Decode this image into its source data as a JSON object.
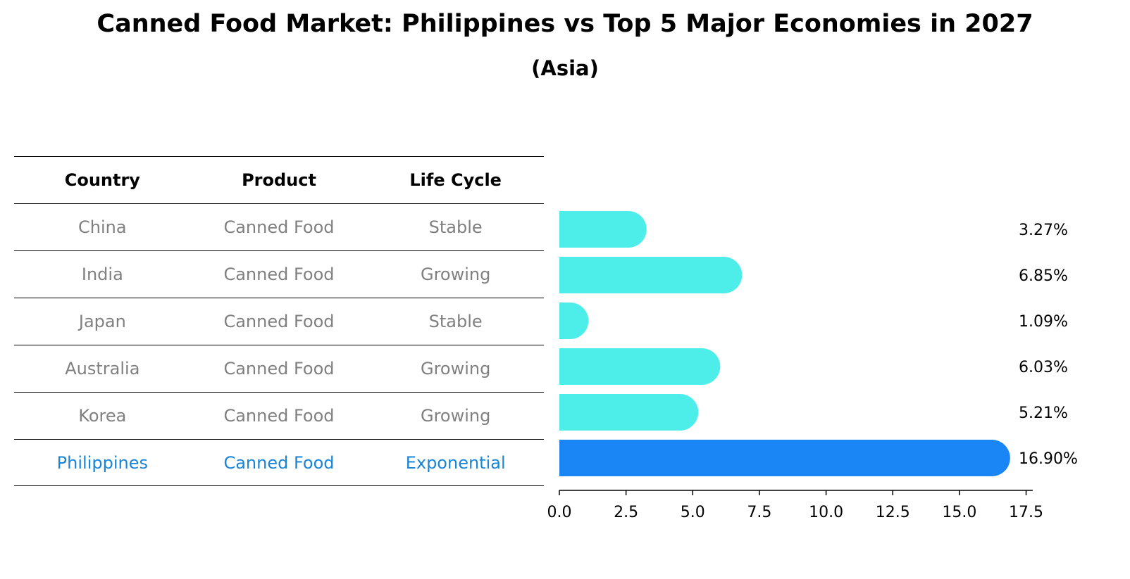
{
  "title": "Canned Food Market: Philippines vs Top 5 Major Economies in 2027",
  "subtitle": "(Asia)",
  "table": {
    "headers": [
      "Country",
      "Product",
      "Life Cycle"
    ],
    "rows": [
      {
        "country": "China",
        "product": "Canned Food",
        "life_cycle": "Stable"
      },
      {
        "country": "India",
        "product": "Canned Food",
        "life_cycle": "Growing"
      },
      {
        "country": "Japan",
        "product": "Canned Food",
        "life_cycle": "Stable"
      },
      {
        "country": "Australia",
        "product": "Canned Food",
        "life_cycle": "Growing"
      },
      {
        "country": "Korea",
        "product": "Canned Food",
        "life_cycle": "Growing"
      },
      {
        "country": "Philippines",
        "product": "Canned Food",
        "life_cycle": "Exponential"
      }
    ]
  },
  "chart_data": {
    "type": "bar",
    "orientation": "horizontal",
    "categories": [
      "China",
      "India",
      "Japan",
      "Australia",
      "Korea",
      "Philippines"
    ],
    "values": [
      3.27,
      6.85,
      1.09,
      6.03,
      5.21,
      16.9
    ],
    "value_labels": [
      "3.27%",
      "6.85%",
      "1.09%",
      "6.03%",
      "5.21%",
      "16.90%"
    ],
    "highlight": "Philippines",
    "xlim": [
      0,
      17.75
    ],
    "xticks": [
      0.0,
      2.5,
      5.0,
      7.5,
      10.0,
      12.5,
      15.0,
      17.5
    ],
    "xtick_labels": [
      "0.0",
      "2.5",
      "5.0",
      "7.5",
      "10.0",
      "12.5",
      "15.0",
      "17.5"
    ],
    "colors": {
      "default": "#4deeea",
      "highlight": "#1a85f5"
    },
    "grid": false
  }
}
